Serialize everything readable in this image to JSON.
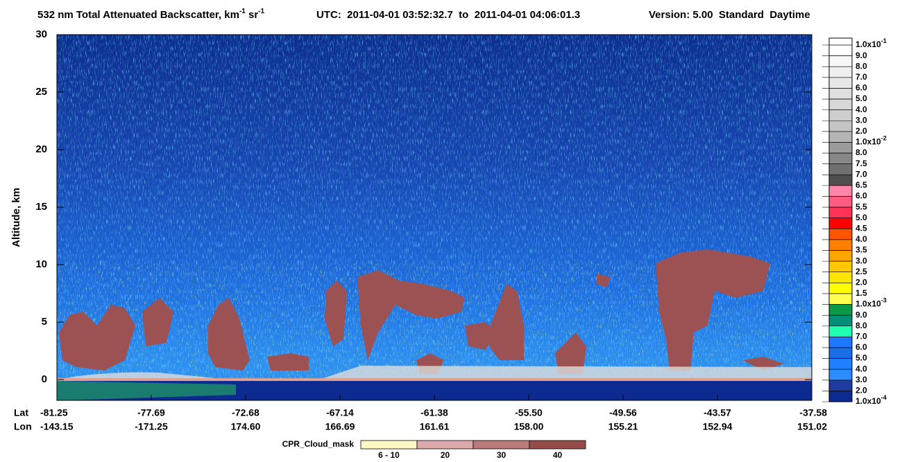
{
  "chart_data": {
    "type": "heatmap",
    "title": [
      "532 nm Total Attenuated Backscatter, km",
      "-1",
      " sr",
      "-1"
    ],
    "utc": "UTC:  2011-04-01 03:52:32.7  to  2011-04-01 04:06:01.3",
    "version": "Version: 5.00  Standard  Daytime",
    "ylabel": "Altitude, km",
    "ylim": [
      -1.8,
      30
    ],
    "yticks": [
      0,
      5,
      10,
      15,
      20,
      25,
      30
    ],
    "x_row_names": [
      "Lat",
      "Lon"
    ],
    "lat": [
      "-81.25",
      "-77.69",
      "-72.68",
      "-67.14",
      "-61.38",
      "-55.50",
      "-49.56",
      "-43.57",
      "-37.58"
    ],
    "lon": [
      "-143.15",
      "-171.25",
      "174.60",
      "166.69",
      "161.61",
      "158.00",
      "155.21",
      "152.94",
      "151.02"
    ],
    "colorbar": {
      "labels": [
        {
          "mantissa": "1.0x10",
          "exp": "-1"
        },
        "9.0",
        "8.0",
        "7.0",
        "6.0",
        "5.0",
        "4.0",
        "3.0",
        "2.0",
        {
          "mantissa": "1.0x10",
          "exp": "-2"
        },
        "8.0",
        "7.5",
        "7.0",
        "6.5",
        "6.0",
        "5.5",
        "5.0",
        "4.5",
        "4.0",
        "3.5",
        "3.0",
        "2.5",
        "2.0",
        "1.5",
        {
          "mantissa": "1.0x10",
          "exp": "-3"
        },
        "9.0",
        "8.0",
        "7.0",
        "6.0",
        "5.0",
        "4.0",
        "3.0",
        "2.0",
        {
          "mantissa": "1.0x10",
          "exp": "-4"
        }
      ],
      "colors": [
        "#ffffff",
        "#f7f7f7",
        "#efefef",
        "#e7e7e7",
        "#dfdfdf",
        "#d7d7d7",
        "#cecece",
        "#c4c4c4",
        "#b5b5b5",
        "#9c9c9c",
        "#878787",
        "#707070",
        "#4f4f4f",
        "#ff86a8",
        "#ff5c82",
        "#ff3355",
        "#ff0000",
        "#ff5500",
        "#ff8000",
        "#ffa500",
        "#ffc800",
        "#ffe400",
        "#ffff00",
        "#ffff50",
        "#0a9a48",
        "#00907a",
        "#20ffb0",
        "#1e78ff",
        "#1a6ee6",
        "#1f80ff",
        "#2a8cff",
        "#1e3ca0",
        "#0c2a90"
      ]
    },
    "cpr": {
      "name": "CPR_Cloud_mask",
      "labels": [
        "6 - 10",
        "20",
        "30",
        "40"
      ],
      "colors": [
        "#fff8c4",
        "#dcaaaa",
        "#b97a7a",
        "#974c4c"
      ]
    }
  }
}
